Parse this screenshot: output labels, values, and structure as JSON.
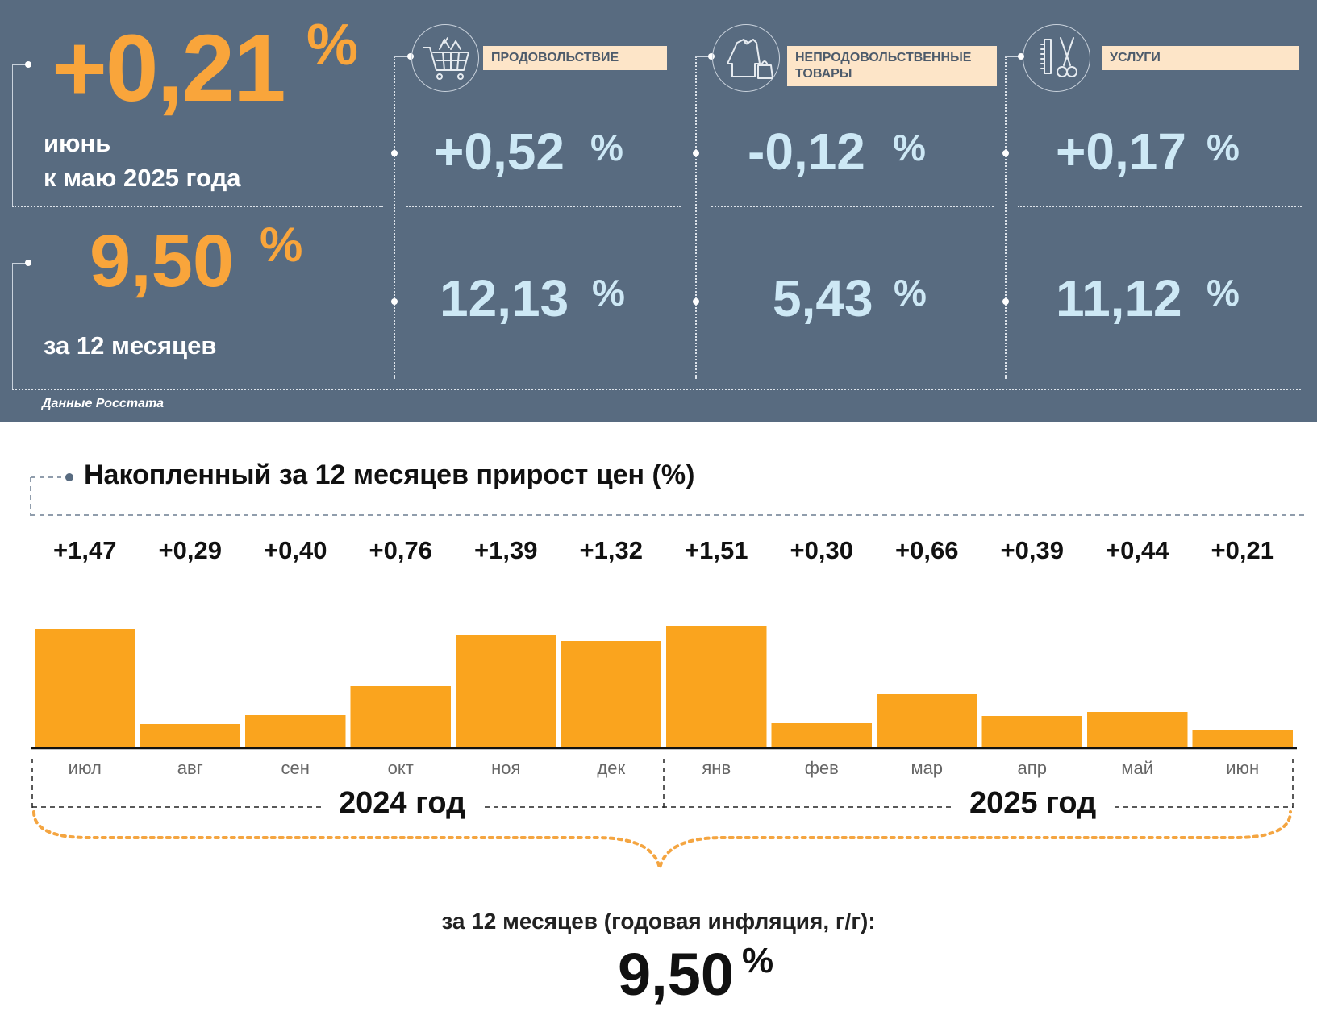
{
  "summary": {
    "month_value": "+0,21",
    "month_unit": "%",
    "month_caption_1": "июнь",
    "month_caption_2": "к маю 2025 года",
    "year_value": "9,50",
    "year_unit": "%",
    "year_caption": "за 12 месяцев",
    "source": "Данные Росстата"
  },
  "categories": [
    {
      "label": "ПРОДОВОЛЬСТВИЕ",
      "icon": "shopping-cart-icon",
      "month": "+0,52",
      "year": "12,13",
      "unit": "%"
    },
    {
      "label": "НЕПРОДОВОЛЬСТВЕННЫЕ ТОВАРЫ",
      "icon": "clothing-icon",
      "month": "-0,12",
      "year": "5,43",
      "unit": "%"
    },
    {
      "label": "УСЛУГИ",
      "icon": "scissors-comb-icon",
      "month": "+0,17",
      "year": "11,12",
      "unit": "%"
    }
  ],
  "chart_data": {
    "type": "bar",
    "title": "Накопленный за 12 месяцев прирост цен (%)",
    "categories": [
      "июл",
      "авг",
      "сен",
      "окт",
      "ноя",
      "дек",
      "янв",
      "фев",
      "мар",
      "апр",
      "май",
      "июн"
    ],
    "values": [
      1.47,
      0.29,
      0.4,
      0.76,
      1.39,
      1.32,
      1.51,
      0.3,
      0.66,
      0.39,
      0.44,
      0.21
    ],
    "value_labels": [
      "+1,47",
      "+0,29",
      "+0,40",
      "+0,76",
      "+1,39",
      "+1,32",
      "+1,51",
      "+0,30",
      "+0,66",
      "+0,39",
      "+0,44",
      "+0,21"
    ],
    "years": [
      "2024 год",
      "2025 год"
    ],
    "annual_caption": "за 12 месяцев (годовая инфляция, г/г):",
    "annual_value": "9,50",
    "annual_unit": "%",
    "bar_color": "#faa41e",
    "ylim": [
      0,
      1.6
    ]
  },
  "colors": {
    "panel_bg": "#586b80",
    "accent_orange": "#f9a53b",
    "value_blue": "#cde8f5",
    "label_bg": "#fde5c8"
  }
}
